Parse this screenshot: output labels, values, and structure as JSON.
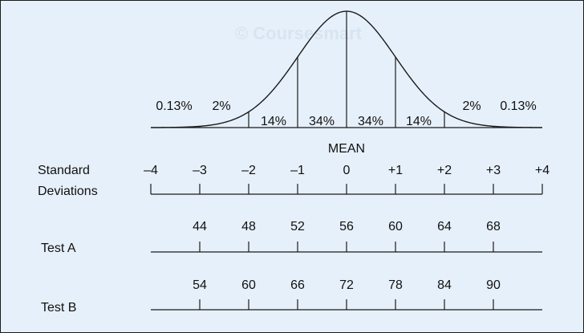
{
  "watermark": "© Coursesmart",
  "curve": {
    "sd_positions": [
      -4,
      -3,
      -2,
      -1,
      0,
      1,
      2,
      3,
      4
    ],
    "percent_labels_upper": [
      "0.13%",
      "2%",
      "2%",
      "0.13%"
    ],
    "percent_labels_inner": [
      "14%",
      "34%",
      "34%",
      "14%"
    ],
    "mean_label": "MEAN"
  },
  "rows": {
    "standard_deviations": {
      "label_line1": "Standard",
      "label_line2": "Deviations",
      "values": [
        "–4",
        "–3",
        "–2",
        "–1",
        "0",
        "+1",
        "+2",
        "+3",
        "+4"
      ]
    },
    "test_a": {
      "label": "Test A",
      "values": [
        "44",
        "48",
        "52",
        "56",
        "60",
        "64",
        "68"
      ]
    },
    "test_b": {
      "label": "Test B",
      "values": [
        "54",
        "60",
        "66",
        "72",
        "78",
        "84",
        "90"
      ]
    }
  },
  "colors": {
    "background": "#e6f0fa",
    "ink": "#1a1a1a",
    "watermark": "#d8e4f0"
  }
}
